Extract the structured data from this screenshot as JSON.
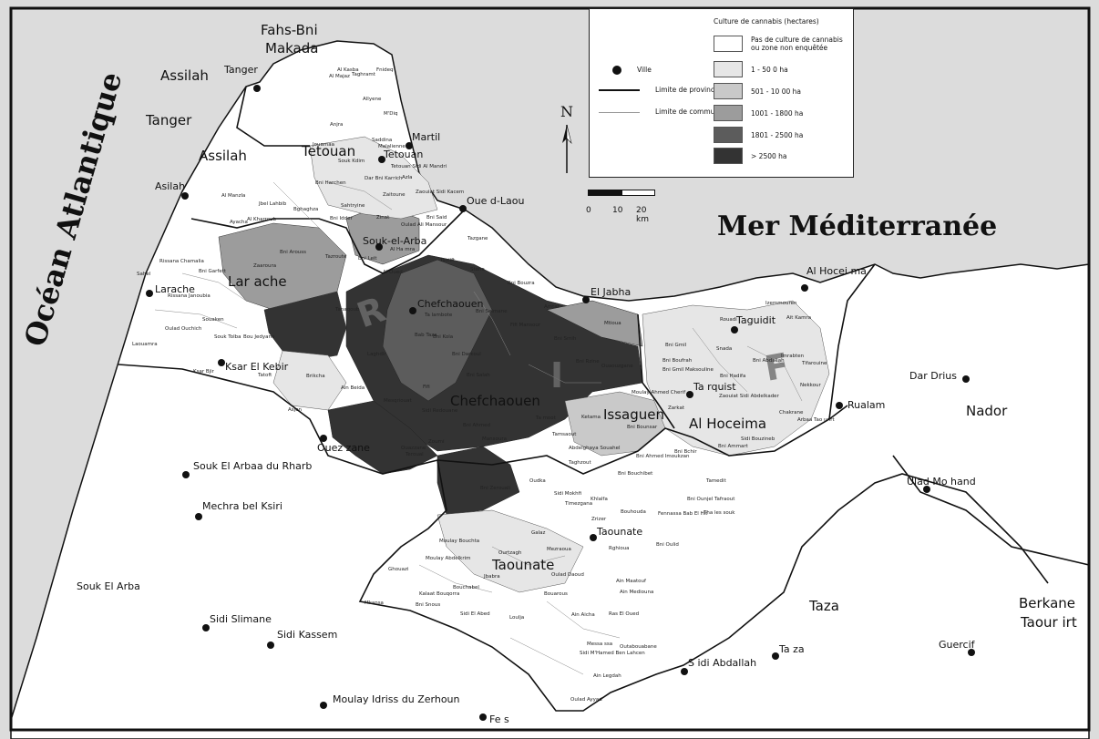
{
  "legend": {
    "title": "Culture de cannabis (hectares)",
    "classes": [
      {
        "label": "Pas de culture de cannabis ou zone non enquêtée",
        "color": "#ffffff"
      },
      {
        "label": "1 - 50 0 ha",
        "color": "#e6e6e6"
      },
      {
        "label": "501 - 10 00 ha",
        "color": "#c9c9c9"
      },
      {
        "label": "1001 - 1800 ha",
        "color": "#9c9c9c"
      },
      {
        "label": "1801 - 2500 ha",
        "color": "#5c5c5c"
      },
      {
        "label": "> 2500 ha",
        "color": "#333333"
      }
    ],
    "key_city": "Ville",
    "key_province": "Limite de province",
    "key_commune": "Limite de commune"
  },
  "scale": {
    "t0": "0",
    "t10": "10",
    "t20": "20 km"
  },
  "north": "N",
  "seas": {
    "atlantic": "Océan Atlantique",
    "med": "Mer Méditerranée"
  },
  "rif": [
    "R",
    "I",
    "F"
  ],
  "provinces": {
    "fahs": [
      "Fahs-Bni",
      "Makada"
    ],
    "assilah_top": "Assilah",
    "tanger": "Tanger",
    "assilah": "Assilah",
    "tetouan": "Tetouan",
    "larache": "Lar ache",
    "chefchaouen": "Chefchaouen",
    "issaguen": "Issaguen",
    "alhoceima": "Al Hoceima",
    "taounate": "Taounate",
    "taza": "Taza",
    "nador": "Nador",
    "berkane": [
      "Berkane",
      "Taour irt"
    ],
    "soukarba_p": "Souk El Arba"
  },
  "cities": {
    "tanger": "Tanger",
    "assilah": "Asilah",
    "martil": "Martil",
    "tetouan": "Tetouan",
    "oued_laou": "Oue d-Laou",
    "souk_arba": "Souk-el-Arba",
    "chefchaouen": "Chefchaouen",
    "el_jabha": "El Jabha",
    "larache": "Larache",
    "ksar": "Ksar El Kebir",
    "ouezzane": "Ouez zane",
    "al_hoceima": "Al Hocei ma",
    "taguidit": "Taguidit",
    "targuist": "Ta rquist",
    "rualam": "Rualam",
    "dar_drius": "Dar Drius",
    "ulad": "Ulad Mo hand",
    "taounate": "Taounate",
    "taza": "Ta za",
    "sidi_abdallah": "S idi Abdallah",
    "guercif": "Guercif",
    "fes": "Fe s",
    "moulay": "Moulay Idriss du Zerhoun",
    "sidi_kassem": "Sidi Kassem",
    "sidi_slimane": "Sidi Slimane",
    "mechra": "Mechra bel Ksiri",
    "souk_rharb": "Souk El Arbaa du Rharb"
  },
  "communes": {
    "c01": "Bni Arouss",
    "c02": "Tazroute",
    "c03": "Zaaroura",
    "c04": "Bni Leit",
    "c05": "Al Oued",
    "c06": "Zinat",
    "c07": "Al Ha mra",
    "c08": "Tanaqoub",
    "c09": "Ta lambote",
    "c10": "Bab Taza",
    "c11": "Bni Selmane",
    "c12": "Fifi Mansour",
    "c13": "Amtar",
    "c14": "Mtioua",
    "c15": "Laghdir",
    "c16": "Bni Darkoul",
    "c17": "Bni Smih",
    "c18": "Bni Rzine",
    "c19": "Ouaouzgane",
    "c20": "Bni Salah",
    "c21": "Bni Ahmed",
    "c22": "Ta moot",
    "c23": "Ketama",
    "c24": "Bni Boufrah",
    "c25": "Snada",
    "c26": "Izemmouren",
    "c27": "Ait Kamra",
    "c28": "Imrabten",
    "c29": "Tifarouine",
    "c30": "Nekkour",
    "c31": "Chakrane",
    "c32": "Arbaa Tao urirt",
    "c33": "Bni Ammart",
    "c34": "Bni Bchir",
    "c35": "Zarkat",
    "c36": "Bni Bounsar",
    "c37": "Abdelghaya Souahel",
    "c38": "Tamsaout",
    "c39": "Taghzout",
    "c40": "Bni Bouchibet",
    "c41": "Mansoura",
    "c42": "Zoumi",
    "c43": "Bni Zerouali",
    "c44": "Oudka",
    "c45": "Sidi Mokhfi",
    "c46": "Timezgana",
    "c47": "Khlalfa",
    "c48": "Bouhouda",
    "c49": "Zrizer",
    "c50": "Fennassa Bab El Hit",
    "c51": "Bni Oulid",
    "c52": "Rghioua",
    "c53": "Galaz",
    "c54": "Ourtzagh",
    "c55": "Mezraoua",
    "c56": "Moulay Bouchta",
    "c57": "Moulay Abdelkrim",
    "c58": "Jbabra",
    "c59": "Ghouazi",
    "c60": "Bouchabel",
    "c61": "Kalaat Bouqorra",
    "c62": "Mkansa",
    "c63": "Bni Snous",
    "c64": "Sidi El Abed",
    "c65": "Loulja",
    "c66": "Ras El Oued",
    "c67": "Ain Aicha",
    "c68": "Bouarous",
    "c69": "Oulad Daoud",
    "c70": "Ain Mediouna",
    "c71": "Ain Maatouf",
    "c72": "Messa ssa",
    "c73": "Outabouabane",
    "c74": "Sidi M'Hamed Ben Lahcen",
    "c75": "Ain Legdah",
    "c76": "Oulad Ayyad",
    "c77": "Tamedit",
    "c78": "Bni Ounjel Tafraout",
    "c79": "Tha les souk",
    "c80": "Sidi Bouzineb",
    "c81": "Zaouiat Sidi Abdelkader",
    "c82": "Bni Hadifa",
    "c83": "Bni Abdallah",
    "c84": "Rouadi",
    "c85": "Bni Gmil",
    "c86": "Bni Gmil Maksouline",
    "c87": "Moulay Ahmed Cherif",
    "c88": "Bni Ahmed Imoukzan",
    "c89": "Souk Kdim",
    "c90": "Jouamaa",
    "c91": "Bni Harchen",
    "c92": "Dar Bni Karrich",
    "c93": "Zaitoune",
    "c94": "Zaouiat Sidi Kacem",
    "c95": "Bni Said",
    "c96": "Oulad Ali Mansour",
    "c97": "Bni Idder",
    "c98": "Saddina",
    "c99": "Malalienne",
    "c100": "Al Manzla",
    "c101": "Jbel Lahbib",
    "c102": "Bghaghza",
    "c103": "Sahtryine",
    "c104": "Al Kharroub",
    "c105": "Ayacha",
    "c106": "Rissana Chamalia",
    "c107": "Sahel",
    "c108": "Bni Garfett",
    "c109": "Rissana Janoubia",
    "c110": "Souaken",
    "c111": "Oulad Ouchich",
    "c112": "Souk Tolba",
    "c113": "Bou Jedyane",
    "c114": "Laouamra",
    "c115": "Ksar Bjir",
    "c116": "Tatoft",
    "c117": "Brikcha",
    "c118": "Ain Beida",
    "c119": "Asjen",
    "c120": "Mesqriouat",
    "c121": "Fifi",
    "c122": "Sidi Redouane",
    "c123": "Bni Kola",
    "c124": "Teroual",
    "c125": "Tazgane",
    "c126": "Steha",
    "c127": "Taxiift",
    "c128": "Bni Bouzra",
    "c129": "Ouazzane",
    "c130": "Tetouan Sidi Al Mandri",
    "c131": "Azla",
    "c132": "Allyene",
    "c133": "M'Diq",
    "c134": "Anjra",
    "c135": "Taghramt",
    "c136": "Fnideq",
    "c137": "Al Majaz",
    "c138": "Al Kasba"
  }
}
